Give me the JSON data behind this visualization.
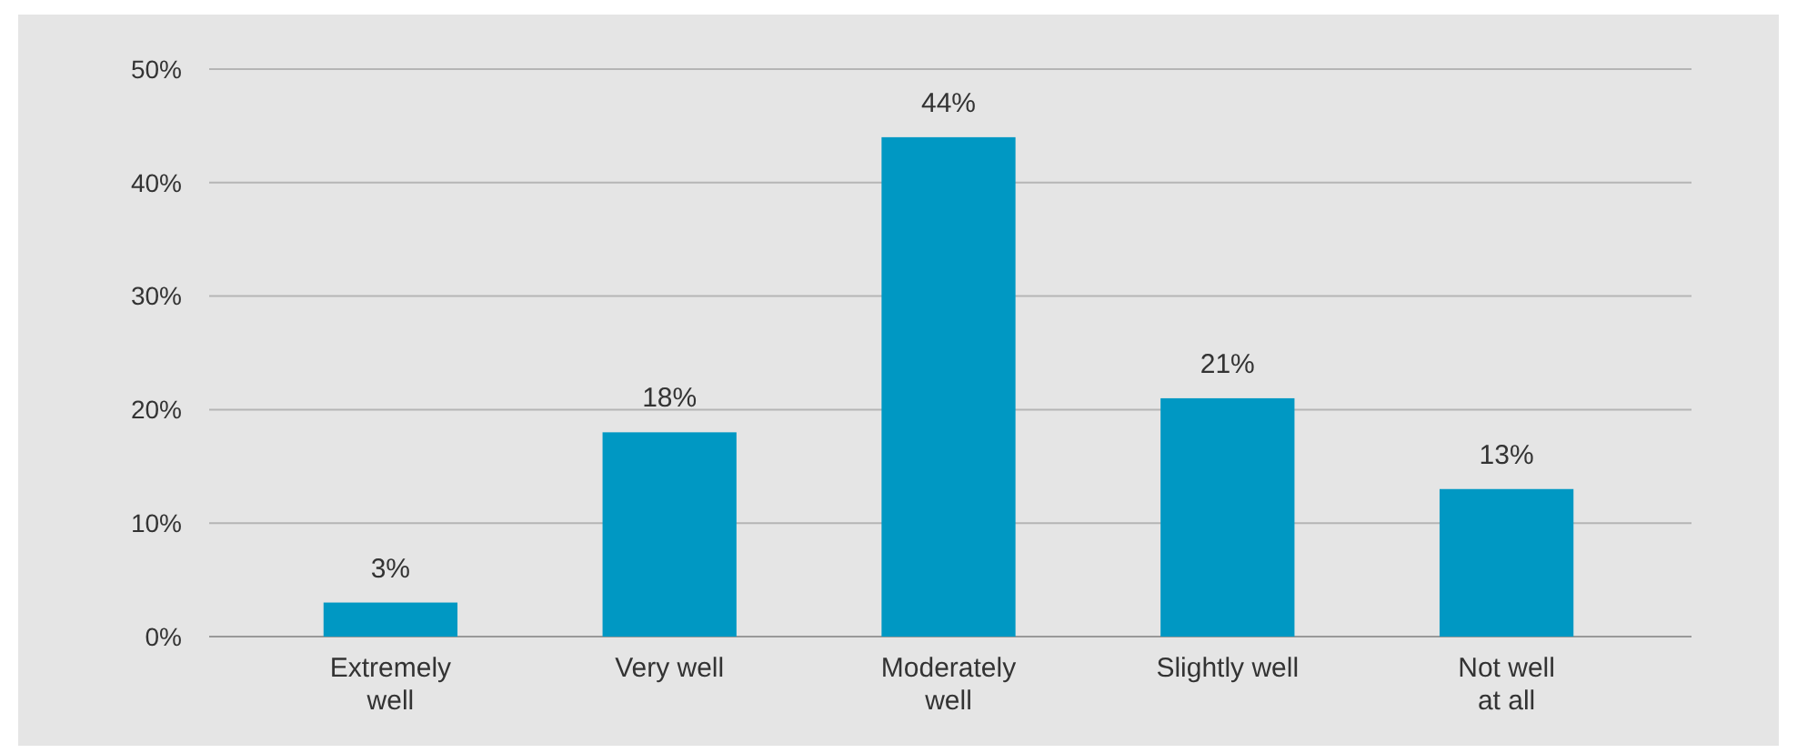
{
  "chart_data": {
    "type": "bar",
    "categories": [
      "Extremely well",
      "Very well",
      "Moderately well",
      "Slightly well",
      "Not well at all"
    ],
    "values": [
      3,
      18,
      44,
      21,
      13
    ],
    "value_labels": [
      "3%",
      "18%",
      "44%",
      "21%",
      "13%"
    ],
    "color": "#0098c3",
    "ylim": [
      0,
      50
    ],
    "yticks": [
      {
        "value": 0,
        "label": "0%"
      },
      {
        "value": 10,
        "label": "10%"
      },
      {
        "value": 20,
        "label": "20%"
      },
      {
        "value": 30,
        "label": "30%"
      },
      {
        "value": 40,
        "label": "40%"
      },
      {
        "value": 50,
        "label": "50%"
      }
    ],
    "grid": "y"
  }
}
